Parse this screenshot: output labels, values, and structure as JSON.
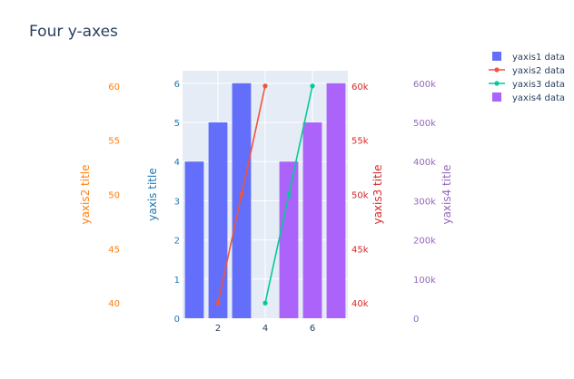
{
  "chart_data": {
    "type": "bar",
    "title": "Four y-axes",
    "x_axis": {
      "range": [
        0.5,
        7.5
      ],
      "ticks": [
        2,
        4,
        6
      ],
      "tick_labels": [
        "2",
        "4",
        "6"
      ]
    },
    "y_axes": [
      {
        "id": "y1",
        "title": "yaxis title",
        "side": "left",
        "color": "#1f77b4",
        "range": [
          0,
          6.32
        ],
        "ticks": [
          0,
          1,
          2,
          3,
          4,
          5,
          6
        ],
        "tick_labels": [
          "0",
          "1",
          "2",
          "3",
          "4",
          "5",
          "6"
        ]
      },
      {
        "id": "y2",
        "title": "yaxis2 title",
        "side": "left",
        "color": "#ff7f0e",
        "range": [
          38.6,
          61.4
        ],
        "ticks": [
          40,
          45,
          50,
          55,
          60
        ],
        "tick_labels": [
          "40",
          "45",
          "50",
          "55",
          "60"
        ]
      },
      {
        "id": "y3",
        "title": "yaxis3 title",
        "side": "right",
        "color": "#d62728",
        "range": [
          38600,
          61400
        ],
        "ticks": [
          40000,
          45000,
          50000,
          55000,
          60000
        ],
        "tick_labels": [
          "40k",
          "45k",
          "50k",
          "55k",
          "60k"
        ]
      },
      {
        "id": "y4",
        "title": "yaxis4 title",
        "side": "right",
        "color": "#9467bd",
        "range": [
          0,
          632000
        ],
        "ticks": [
          0,
          100000,
          200000,
          300000,
          400000,
          500000,
          600000
        ],
        "tick_labels": [
          "0",
          "100k",
          "200k",
          "300k",
          "400k",
          "500k",
          "600k"
        ]
      }
    ],
    "series": [
      {
        "name": "yaxis1 data",
        "type": "bar",
        "axis": "y1",
        "color": "#636efa",
        "x": [
          1,
          2,
          3
        ],
        "y": [
          4,
          5,
          6
        ]
      },
      {
        "name": "yaxis2 data",
        "type": "line",
        "axis": "y2",
        "color": "#ef553b",
        "x": [
          2,
          3,
          4
        ],
        "y": [
          40,
          50,
          60
        ]
      },
      {
        "name": "yaxis3 data",
        "type": "line",
        "axis": "y3",
        "color": "#00cc96",
        "x": [
          4,
          5,
          6
        ],
        "y": [
          40000,
          50000,
          60000
        ]
      },
      {
        "name": "yaxis4 data",
        "type": "bar",
        "axis": "y4",
        "color": "#ab63fa",
        "x": [
          5,
          6,
          7
        ],
        "y": [
          400000,
          500000,
          600000
        ]
      }
    ],
    "legend": {
      "position": "top-right"
    },
    "grid": true,
    "plot_background": "#e5ecf6"
  }
}
